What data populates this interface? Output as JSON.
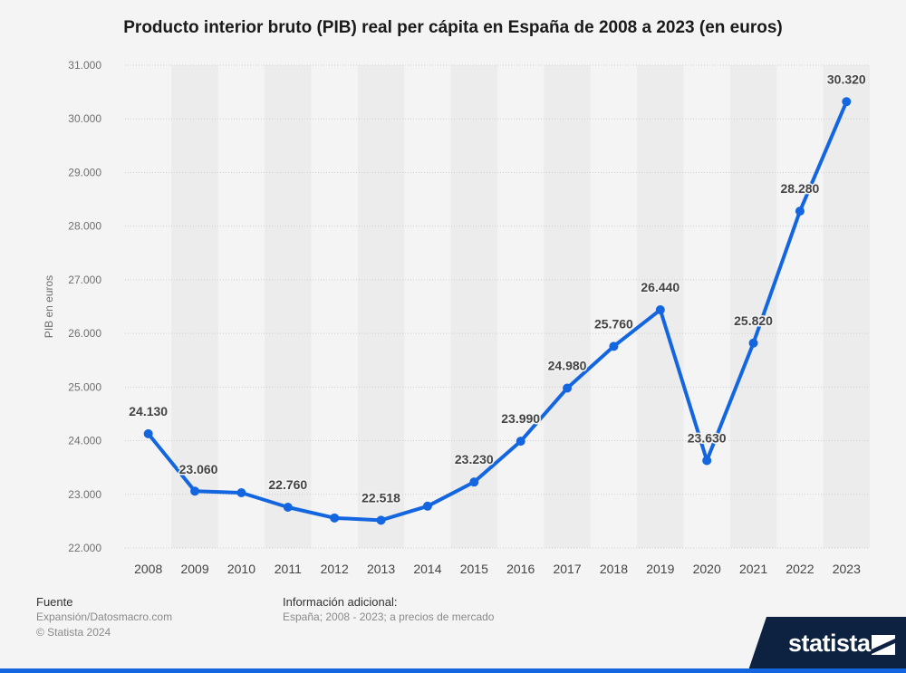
{
  "chart_data": {
    "type": "line",
    "title": "Producto interior bruto (PIB) real per cápita en España de 2008 a 2023 (en euros)",
    "ylabel": "PIB en euros",
    "xlabel": "",
    "categories": [
      "2008",
      "2009",
      "2010",
      "2011",
      "2012",
      "2013",
      "2014",
      "2015",
      "2016",
      "2017",
      "2018",
      "2019",
      "2020",
      "2021",
      "2022",
      "2023"
    ],
    "values": [
      24130,
      23060,
      23030,
      22760,
      22560,
      22518,
      22780,
      23230,
      23990,
      24980,
      25760,
      26440,
      23630,
      25820,
      28280,
      30320
    ],
    "data_labels": [
      "24.130",
      "23.060",
      "",
      "22.760",
      "",
      "22.518",
      "",
      "23.230",
      "23.990",
      "24.980",
      "25.760",
      "26.440",
      "23.630",
      "25.820",
      "28.280",
      "30.320"
    ],
    "ylim": [
      22000,
      31000
    ],
    "yticks": [
      22000,
      23000,
      24000,
      25000,
      26000,
      27000,
      28000,
      29000,
      30000,
      31000
    ],
    "ytick_labels": [
      "22.000",
      "23.000",
      "24.000",
      "25.000",
      "26.000",
      "27.000",
      "28.000",
      "29.000",
      "30.000",
      "31.000"
    ],
    "grid": true,
    "line_color": "#1366e0",
    "band_color": "#ececec"
  },
  "footer": {
    "source_heading": "Fuente",
    "source_lines": [
      "Expansión/Datosmacro.com",
      "© Statista 2024"
    ],
    "info_heading": "Información adicional:",
    "info_text": "España; 2008 - 2023; a precios de mercado"
  },
  "brand": {
    "name": "statista",
    "bg_color": "#0d2241"
  }
}
